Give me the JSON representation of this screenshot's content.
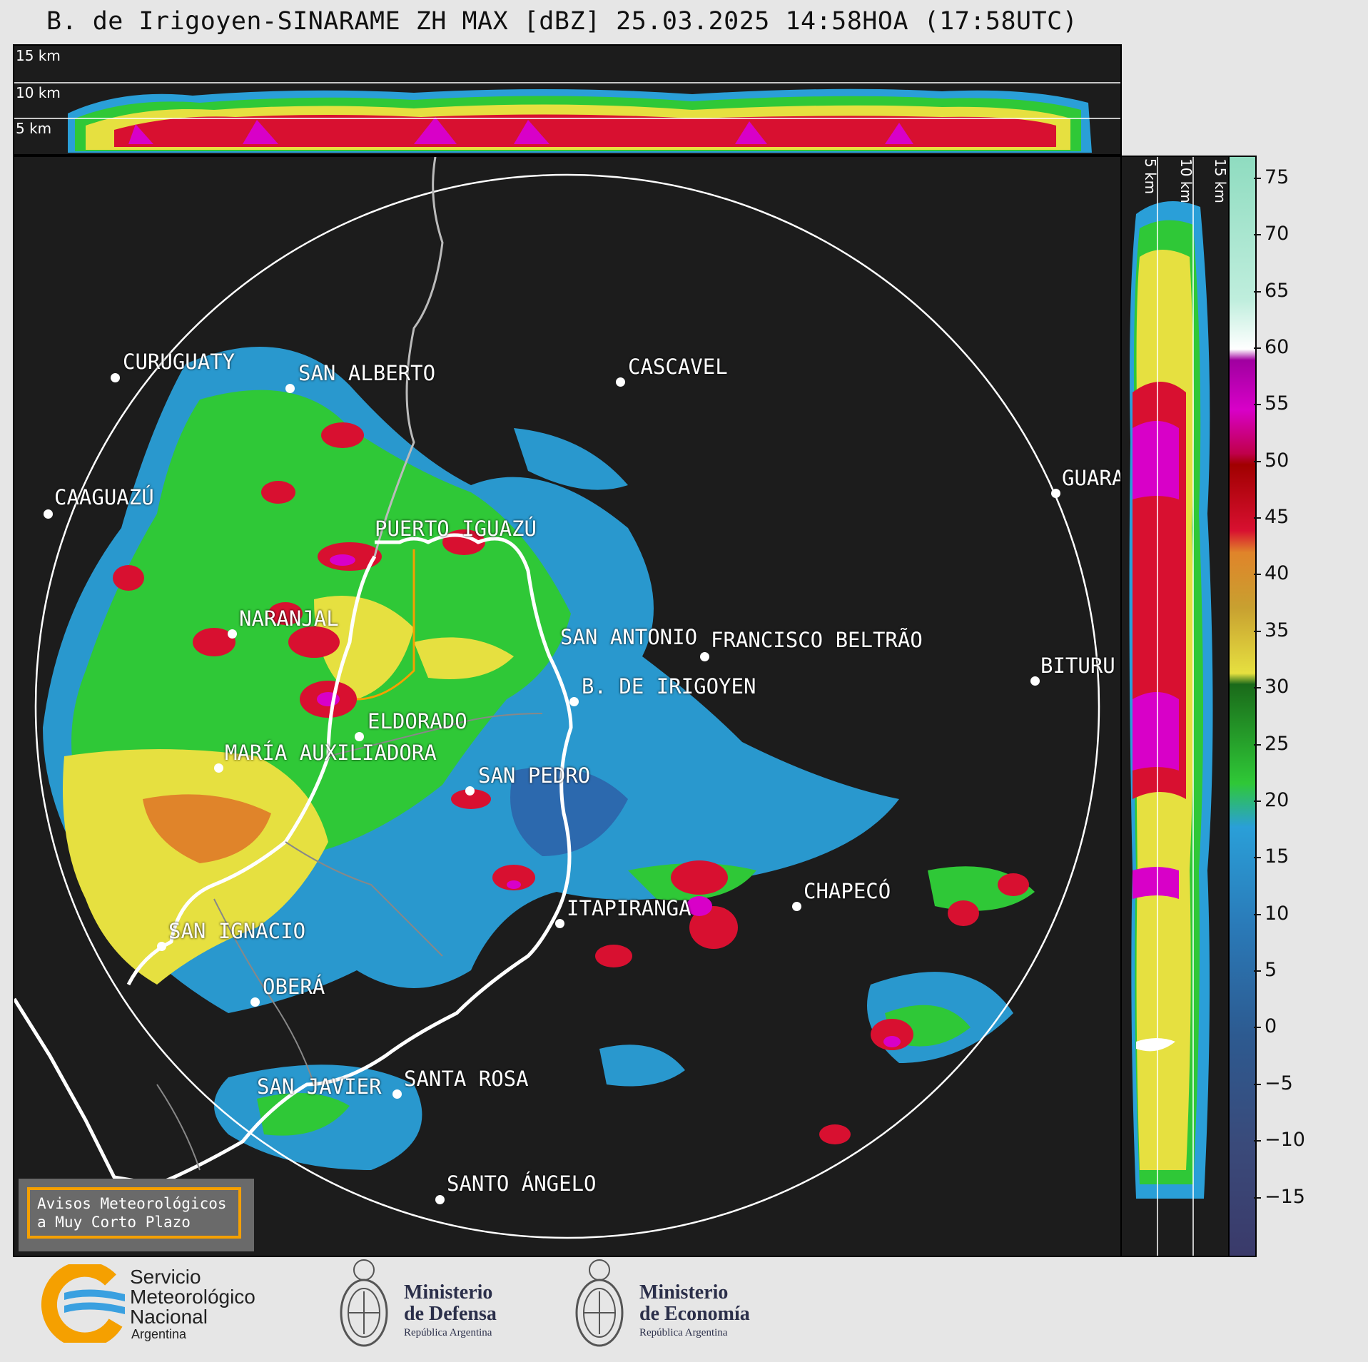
{
  "title": "B. de Irigoyen-SINARAME ZH MAX [dBZ] 25.03.2025 14:58HOA (17:58UTC)",
  "top_panel": {
    "height_labels": [
      "15 km",
      "10 km",
      "5 km"
    ]
  },
  "side_panel": {
    "height_labels": [
      "5 km",
      "10 km",
      "15 km"
    ]
  },
  "colorbar": {
    "unit": "dBZ",
    "ticks": [
      "75",
      "70",
      "65",
      "60",
      "55",
      "50",
      "45",
      "40",
      "35",
      "30",
      "25",
      "20",
      "15",
      "10",
      "5",
      "0",
      "−5",
      "−10",
      "−15"
    ],
    "range": [
      -20,
      77
    ]
  },
  "cities": [
    {
      "name": "CURUGUATY"
    },
    {
      "name": "SAN ALBERTO"
    },
    {
      "name": "CASCAVEL"
    },
    {
      "name": "CAAGUAZÚ"
    },
    {
      "name": "GUARA"
    },
    {
      "name": "PUERTO IGUAZÚ"
    },
    {
      "name": "NARANJAL"
    },
    {
      "name": "SAN ANTONIO"
    },
    {
      "name": "FRANCISCO BELTRÃO"
    },
    {
      "name": "BITURU"
    },
    {
      "name": "B. DE IRIGOYEN"
    },
    {
      "name": "ELDORADO"
    },
    {
      "name": "MARÍA AUXILIADORA"
    },
    {
      "name": "SAN PEDRO"
    },
    {
      "name": "CHAPECÓ"
    },
    {
      "name": "ITAPIRANGA"
    },
    {
      "name": "SAN IGNACIO"
    },
    {
      "name": "OBERÁ"
    },
    {
      "name": "SAN JAVIER"
    },
    {
      "name": "SANTA ROSA"
    },
    {
      "name": "SANTO ÁNGELO"
    }
  ],
  "warning_box": {
    "line1": "Avisos Meteorológicos",
    "line2": "a Muy Corto Plazo"
  },
  "logos": {
    "smn": {
      "line1": "Servicio",
      "line2": "Meteorológico",
      "line3": "Nacional",
      "line4": "Argentina"
    },
    "defensa": {
      "line1": "Ministerio",
      "line2": "de Defensa",
      "line3": "República Argentina"
    },
    "economia": {
      "line1": "Ministerio",
      "line2": "de Economía",
      "line3": "República Argentina"
    }
  },
  "colors": {
    "weak": "#2a9fd8",
    "light": "#2fc837",
    "moderate": "#e6e040",
    "strong": "#e0842a",
    "heavy": "#d81030",
    "extreme": "#d800c8",
    "background": "#1c1c1c"
  }
}
